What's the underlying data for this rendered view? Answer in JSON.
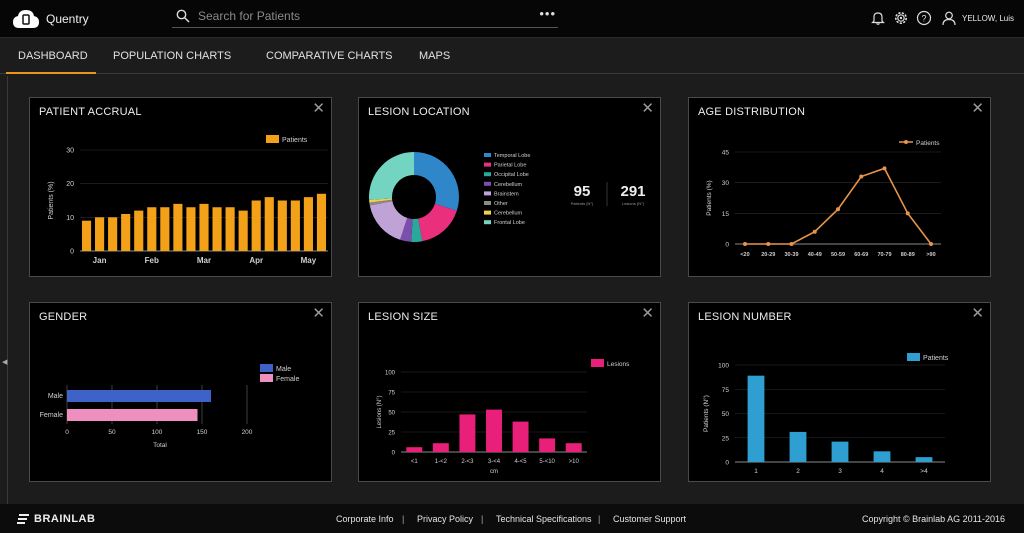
{
  "app": {
    "name": "Quentry"
  },
  "search": {
    "placeholder": "Search for Patients",
    "more": "•••"
  },
  "user": {
    "name": "YELLOW, Luis"
  },
  "header_icons": [
    "bell-icon",
    "gear-icon",
    "help-icon",
    "user-icon"
  ],
  "tabs": [
    {
      "label": "DASHBOARD",
      "active": true
    },
    {
      "label": "POPULATION CHARTS"
    },
    {
      "label": "COMPARATIVE CHARTS"
    },
    {
      "label": "MAPS"
    }
  ],
  "colors": {
    "accent": "#e8951c",
    "bar_orange": "#f2a118",
    "line_orange": "#e8954a",
    "male": "#3f62c9",
    "female": "#ef8fbf",
    "lesion_pink": "#e8207a",
    "lesion_blue": "#2f9fd1"
  },
  "panels": {
    "accrual": {
      "title": "PATIENT ACCRUAL",
      "close": "✕",
      "chart_data": {
        "type": "bar",
        "ylabel": "Patients (%)",
        "ylim": [
          0,
          30
        ],
        "yticks": [
          "0",
          "10",
          "20",
          "30"
        ],
        "month_labels": [
          "Jan",
          "Feb",
          "Mar",
          "Apr",
          "May"
        ],
        "legend": [
          "Patients"
        ],
        "series": [
          {
            "name": "Patients",
            "values": [
              9,
              10,
              10,
              11,
              12,
              13,
              13,
              14,
              13,
              14,
              13,
              13,
              12,
              15,
              16,
              15,
              15,
              16,
              17
            ]
          }
        ]
      }
    },
    "location": {
      "title": "LESION LOCATION",
      "close": "✕",
      "chart_data": {
        "type": "pie",
        "slices": [
          {
            "label": "Temporal Lobe",
            "value": 30,
            "color": "#2f86c8"
          },
          {
            "label": "Parietal Lobe",
            "value": 17,
            "color": "#ea2f7d"
          },
          {
            "label": "Occipital Lobe",
            "value": 4,
            "color": "#2aa89a"
          },
          {
            "label": "Cerebellum",
            "value": 4,
            "color": "#7a4fae"
          },
          {
            "label": "Brainstem",
            "value": 17,
            "color": "#bfa3d6"
          },
          {
            "label": "Other",
            "value": 1,
            "color": "#8a8a8a"
          },
          {
            "label": "Cerebellum",
            "value": 1,
            "color": "#f2d14a"
          },
          {
            "label": "Frontal Lobe",
            "value": 26,
            "color": "#72d4c1"
          }
        ]
      },
      "stats": [
        {
          "value": "95",
          "label": "Patients (N°)"
        },
        {
          "value": "291",
          "label": "Lesions (N°)"
        }
      ]
    },
    "age": {
      "title": "AGE DISTRIBUTION",
      "close": "✕",
      "chart_data": {
        "type": "line",
        "ylabel": "Patients (%)",
        "ylim": [
          0,
          45
        ],
        "yticks": [
          "0",
          "15",
          "30",
          "45"
        ],
        "categories": [
          "<20",
          "20-29",
          "30-39",
          "40-49",
          "50-59",
          "60-69",
          "70-79",
          "80-89",
          ">90"
        ],
        "legend": [
          "Patients"
        ],
        "series": [
          {
            "name": "Patients",
            "values": [
              0,
              0,
              0,
              6,
              17,
              33,
              37,
              15,
              0
            ]
          }
        ]
      }
    },
    "gender": {
      "title": "GENDER",
      "close": "✕",
      "chart_data": {
        "type": "bar",
        "orientation": "horizontal",
        "categories": [
          "Male",
          "Female"
        ],
        "values": [
          160,
          145
        ],
        "xlabel": "Total",
        "xlim": [
          0,
          200
        ],
        "xticks": [
          "0",
          "50",
          "100",
          "150",
          "200"
        ],
        "legend": [
          "Male",
          "Female"
        ]
      }
    },
    "size": {
      "title": "LESION SIZE",
      "close": "✕",
      "chart_data": {
        "type": "bar",
        "ylabel": "Lesions (N°)",
        "xlabel": "cm",
        "ylim": [
          0,
          100
        ],
        "yticks": [
          "0",
          "25",
          "50",
          "75",
          "100"
        ],
        "categories": [
          "<1",
          "1-<2",
          "2-<3",
          "3-<4",
          "4-<5",
          "5-<10",
          ">10"
        ],
        "legend": [
          "Lesions"
        ],
        "series": [
          {
            "name": "Lesions",
            "values": [
              6,
              11,
              47,
              53,
              38,
              17,
              11
            ]
          }
        ]
      }
    },
    "number": {
      "title": "LESION NUMBER",
      "close": "✕",
      "chart_data": {
        "type": "bar",
        "ylabel": "Patients (N°)",
        "ylim": [
          0,
          100
        ],
        "yticks": [
          "0",
          "25",
          "50",
          "75",
          "100"
        ],
        "categories": [
          "1",
          "2",
          "3",
          "4",
          ">4"
        ],
        "legend": [
          "Patients"
        ],
        "series": [
          {
            "name": "Patients",
            "values": [
              89,
              31,
              21,
              11,
              5
            ]
          }
        ]
      }
    }
  },
  "footer": {
    "brand": "BRAINLAB",
    "links": [
      "Corporate Info",
      "Privacy Policy",
      "Technical Specifications",
      "Customer Support"
    ],
    "separator": "|",
    "copyright": "Copyright © Brainlab AG 2011-2016"
  }
}
